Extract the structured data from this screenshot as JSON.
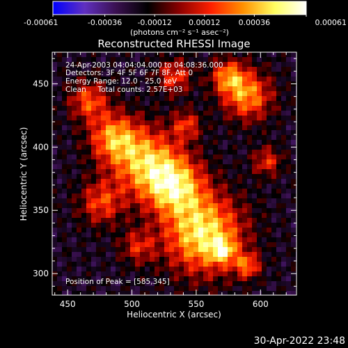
{
  "colorbar": {
    "ticks": [
      "-0.00061",
      "-0.00036",
      "-0.00012",
      "0.00012",
      "0.00036",
      "0.00061"
    ],
    "range": [
      -0.00061,
      0.00061
    ],
    "unit_label": "(photons cm⁻² s⁻¹ asec⁻²)"
  },
  "plot": {
    "title": "Reconstructed RHESSI Image",
    "annotations": {
      "time_range": "24-Apr-2003 04:04:04.000 to 04:08:36.000",
      "detectors": "Detectors: 3F 4F 5F 6F 7F 8F, Att 0",
      "energy": "Energy Range: 12.0 - 25.0 keV",
      "method_counts": "Clean     Total counts: 2.57E+03",
      "peak": "Position of Peak = [585,345]"
    }
  },
  "footer": {
    "timestamp": "30-Apr-2022 23:48"
  },
  "chart_data": {
    "type": "heatmap",
    "title": "Reconstructed RHESSI Image",
    "xlabel": "Heliocentric X (arcsec)",
    "ylabel": "Heliocentric Y (arcsec)",
    "xlim": [
      438,
      628
    ],
    "ylim": [
      283,
      475
    ],
    "x_ticks": [
      450,
      500,
      550,
      600
    ],
    "y_ticks": [
      300,
      350,
      400,
      450
    ],
    "zlim": [
      -0.00061,
      0.00061
    ],
    "colormap": [
      "#0000ff",
      "#6030c0",
      "#3a1050",
      "#000000",
      "#8b0000",
      "#ff2000",
      "#ff9000",
      "#ffff60",
      "#ffffff"
    ],
    "peak": [
      585,
      345
    ]
  }
}
